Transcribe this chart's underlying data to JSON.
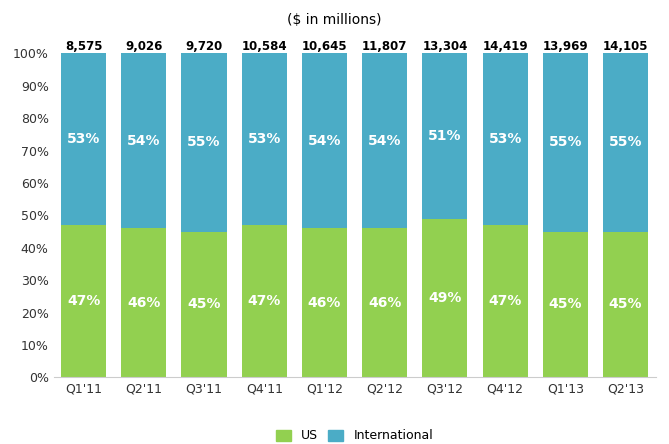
{
  "categories": [
    "Q1'11",
    "Q2'11",
    "Q3'11",
    "Q4'11",
    "Q1'12",
    "Q2'12",
    "Q3'12",
    "Q4'12",
    "Q1'13",
    "Q2'13"
  ],
  "us_pct": [
    47,
    46,
    45,
    47,
    46,
    46,
    49,
    47,
    45,
    45
  ],
  "intl_pct": [
    53,
    54,
    55,
    53,
    54,
    54,
    51,
    53,
    55,
    55
  ],
  "totals": [
    "8,575",
    "9,026",
    "9,720",
    "10,584",
    "10,645",
    "11,807",
    "13,304",
    "14,419",
    "13,969",
    "14,105"
  ],
  "us_color": "#92d050",
  "intl_color": "#4bacc6",
  "title": "($ in millions)",
  "title_fontsize": 10,
  "bar_label_fontsize": 10,
  "tick_label_fontsize": 9,
  "total_fontsize": 8.5,
  "legend_fontsize": 9,
  "background_color": "#ffffff",
  "ylim": [
    0,
    100
  ],
  "bar_width": 0.75
}
